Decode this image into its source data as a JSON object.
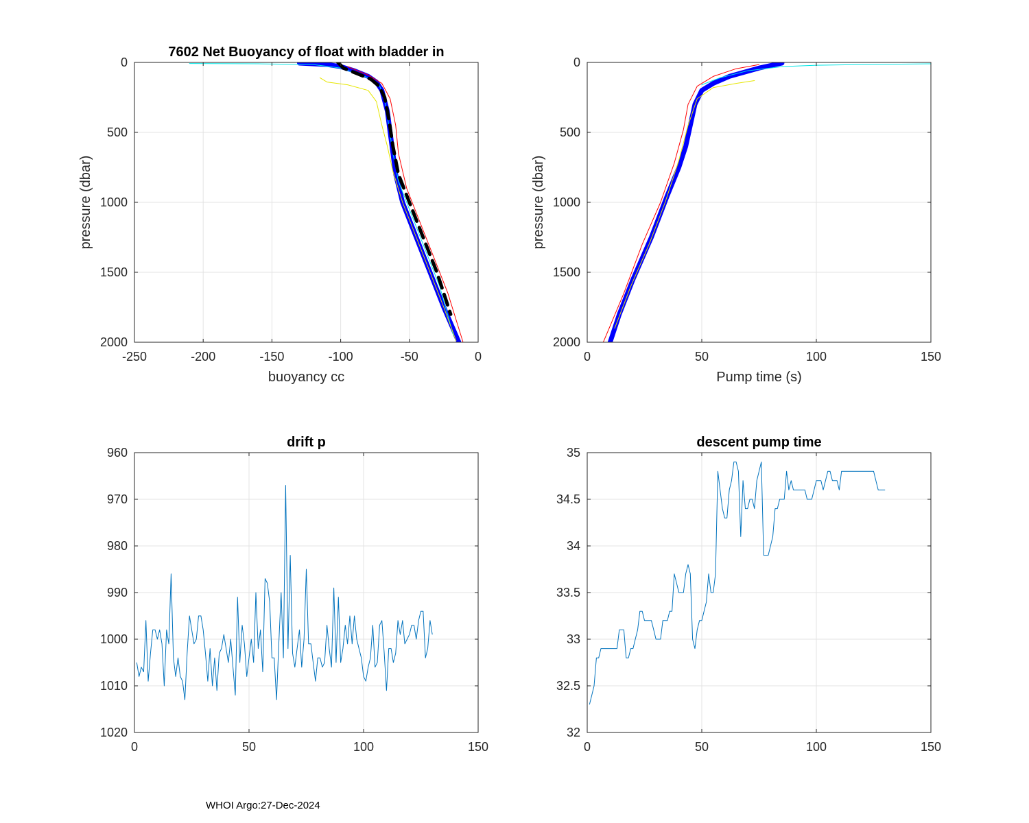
{
  "footer": "WHOI Argo:27-Dec-2024",
  "chart_data": [
    {
      "type": "line",
      "title": "7602 Net Buoyancy of float with bladder in",
      "xlabel": "buoyancy cc",
      "ylabel": "pressure (dbar)",
      "xlim": [
        -250,
        0
      ],
      "ylim": [
        0,
        2000
      ],
      "y_reversed": true,
      "xticks": [
        -250,
        -200,
        -150,
        -100,
        -50,
        0
      ],
      "yticks": [
        0,
        500,
        1000,
        1500,
        2000
      ],
      "grid": true,
      "series": [
        {
          "name": "profiles (blue)",
          "color": "#0000ff",
          "width": 7,
          "x": [
            -130,
            -110,
            -100,
            -90,
            -80,
            -74,
            -70,
            -66,
            -64,
            -62,
            -60,
            -55,
            -45,
            -35,
            -25,
            -14
          ],
          "y": [
            5,
            15,
            30,
            60,
            100,
            140,
            200,
            350,
            500,
            650,
            800,
            1000,
            1250,
            1500,
            1750,
            2000
          ]
        },
        {
          "name": "profile (cyan)",
          "color": "#00e6e6",
          "width": 1,
          "x": [
            -210,
            -160,
            -120,
            -100,
            -80,
            -72,
            -68,
            -65,
            -62,
            -58,
            -48,
            -38,
            -28,
            -18
          ],
          "y": [
            8,
            10,
            15,
            40,
            110,
            160,
            260,
            450,
            650,
            850,
            1100,
            1350,
            1600,
            1950
          ]
        },
        {
          "name": "profile (yellow)",
          "color": "#e6e600",
          "width": 1,
          "x": [
            -115,
            -110,
            -95,
            -80,
            -74,
            -70,
            -66,
            -62,
            -55,
            -45,
            -35,
            -25,
            -16
          ],
          "y": [
            110,
            140,
            160,
            200,
            280,
            450,
            600,
            780,
            1000,
            1250,
            1500,
            1750,
            1990
          ]
        },
        {
          "name": "profile (red)",
          "color": "#ff0000",
          "width": 1,
          "x": [
            -95,
            -80,
            -70,
            -64,
            -60,
            -58,
            -52,
            -42,
            -32,
            -22,
            -11
          ],
          "y": [
            30,
            90,
            150,
            260,
            450,
            650,
            900,
            1150,
            1400,
            1650,
            2000
          ]
        },
        {
          "name": "mean",
          "color": "#000000",
          "width": 5,
          "dash": true,
          "x": [
            -102,
            -98,
            -88,
            -78,
            -72,
            -68,
            -65,
            -62,
            -58,
            -50,
            -40,
            -30,
            -20
          ],
          "y": [
            0,
            40,
            80,
            120,
            170,
            250,
            400,
            600,
            800,
            1000,
            1250,
            1500,
            1800
          ]
        }
      ]
    },
    {
      "type": "line",
      "title": "",
      "xlabel": "Pump time (s)",
      "ylabel": "pressure (dbar)",
      "xlim": [
        0,
        150
      ],
      "ylim": [
        0,
        2000
      ],
      "y_reversed": true,
      "xticks": [
        0,
        50,
        100,
        150
      ],
      "yticks": [
        0,
        500,
        1000,
        1500,
        2000
      ],
      "grid": true,
      "series": [
        {
          "name": "profiles (blue)",
          "color": "#0000ff",
          "width": 7,
          "x": [
            85,
            75,
            62,
            55,
            50,
            47,
            45,
            43,
            40,
            35,
            28,
            20,
            14,
            10
          ],
          "y": [
            5,
            40,
            100,
            150,
            200,
            300,
            450,
            600,
            750,
            950,
            1250,
            1550,
            1800,
            2000
          ]
        },
        {
          "name": "profiles (cyan)",
          "color": "#00e6e6",
          "width": 1,
          "x": [
            150,
            120,
            100,
            85,
            70,
            58,
            50
          ],
          "y": [
            10,
            15,
            20,
            30,
            60,
            110,
            160
          ]
        },
        {
          "name": "profile (yellow)",
          "color": "#e6e600",
          "width": 1,
          "x": [
            73,
            65,
            55,
            48,
            44,
            40,
            34,
            27,
            19,
            12
          ],
          "y": [
            130,
            150,
            180,
            260,
            450,
            700,
            1000,
            1300,
            1600,
            1900
          ]
        },
        {
          "name": "profile (red)",
          "color": "#ff0000",
          "width": 1,
          "x": [
            75,
            65,
            55,
            48,
            44,
            42,
            38,
            32,
            24,
            16,
            7
          ],
          "y": [
            15,
            45,
            100,
            170,
            300,
            480,
            720,
            1000,
            1300,
            1650,
            2000
          ]
        }
      ]
    },
    {
      "type": "line",
      "title": "drift p",
      "xlabel": "",
      "ylabel": "",
      "xlim": [
        0,
        150
      ],
      "ylim": [
        960,
        1020
      ],
      "y_reversed": true,
      "xticks": [
        0,
        50,
        100,
        150
      ],
      "yticks": [
        960,
        970,
        980,
        990,
        1000,
        1010,
        1020
      ],
      "grid": true,
      "color": "#0072bd",
      "x": [
        1,
        2,
        3,
        4,
        5,
        6,
        7,
        8,
        9,
        10,
        11,
        12,
        13,
        14,
        15,
        16,
        17,
        18,
        19,
        20,
        21,
        22,
        23,
        24,
        25,
        26,
        27,
        28,
        29,
        30,
        31,
        32,
        33,
        34,
        35,
        36,
        37,
        38,
        39,
        40,
        41,
        42,
        43,
        44,
        45,
        46,
        47,
        48,
        49,
        50,
        51,
        52,
        53,
        54,
        55,
        56,
        57,
        58,
        59,
        60,
        61,
        62,
        63,
        64,
        65,
        66,
        67,
        68,
        69,
        70,
        71,
        72,
        73,
        74,
        75,
        76,
        77,
        78,
        79,
        80,
        81,
        82,
        83,
        84,
        85,
        86,
        87,
        88,
        89,
        90,
        91,
        92,
        93,
        94,
        95,
        96,
        97,
        98,
        99,
        100,
        101,
        102,
        103,
        104,
        105,
        106,
        107,
        108,
        109,
        110,
        111,
        112,
        113,
        114,
        115,
        116,
        117,
        118,
        119,
        120,
        121,
        122,
        123,
        124,
        125,
        126,
        127,
        128,
        129,
        130
      ],
      "values": [
        1005,
        1008,
        1006,
        1007,
        996,
        1009,
        1003,
        998,
        998,
        1000,
        998,
        1001,
        1010,
        998,
        1001,
        986,
        1004,
        1008,
        1004,
        1008,
        1009,
        1013,
        1003,
        995,
        998,
        1001,
        1000,
        995,
        995,
        998,
        1003,
        1009,
        1002,
        1010,
        1004,
        1011,
        1003,
        1002,
        999,
        1002,
        1005,
        1000,
        1006,
        1012,
        991,
        1005,
        997,
        1001,
        1008,
        1004,
        1000,
        1005,
        990,
        1002,
        998,
        1007,
        987,
        988,
        992,
        1004,
        1004,
        1013,
        1001,
        990,
        1004,
        967,
        1002,
        982,
        1003,
        1006,
        1002,
        998,
        1006,
        1000,
        985,
        1001,
        1001,
        1005,
        1009,
        1004,
        1004,
        1006,
        1005,
        997,
        1002,
        1006,
        989,
        1005,
        991,
        1005,
        1002,
        997,
        1001,
        995,
        1001,
        995,
        1000,
        1002,
        1004,
        1008,
        1009,
        1006,
        1004,
        997,
        1006,
        1005,
        997,
        996,
        1003,
        1011,
        1002,
        1002,
        1005,
        1003,
        996,
        999,
        996,
        1001,
        1000,
        999,
        997,
        997,
        1000,
        996,
        994,
        994,
        1004,
        1002,
        996,
        999
      ]
    },
    {
      "type": "line",
      "title": "descent pump time",
      "xlabel": "",
      "ylabel": "",
      "xlim": [
        0,
        150
      ],
      "ylim": [
        32,
        35
      ],
      "xticks": [
        0,
        50,
        100,
        150
      ],
      "yticks": [
        32,
        32.5,
        33,
        33.5,
        34,
        34.5,
        35
      ],
      "grid": true,
      "color": "#0072bd",
      "x": [
        1,
        2,
        3,
        4,
        5,
        6,
        7,
        8,
        9,
        10,
        11,
        12,
        13,
        14,
        15,
        16,
        17,
        18,
        19,
        20,
        21,
        22,
        23,
        24,
        25,
        26,
        27,
        28,
        29,
        30,
        31,
        32,
        33,
        34,
        35,
        36,
        37,
        38,
        39,
        40,
        41,
        42,
        43,
        44,
        45,
        46,
        47,
        48,
        49,
        50,
        51,
        52,
        53,
        54,
        55,
        56,
        57,
        58,
        59,
        60,
        61,
        62,
        63,
        64,
        65,
        66,
        67,
        68,
        69,
        70,
        71,
        72,
        73,
        74,
        75,
        76,
        77,
        78,
        79,
        80,
        81,
        82,
        83,
        84,
        85,
        86,
        87,
        88,
        89,
        90,
        91,
        92,
        93,
        94,
        95,
        96,
        97,
        98,
        99,
        100,
        101,
        102,
        103,
        104,
        105,
        106,
        107,
        108,
        109,
        110,
        111,
        112,
        113,
        114,
        115,
        116,
        117,
        118,
        119,
        120,
        121,
        122,
        123,
        124,
        125,
        126,
        127,
        128,
        129,
        130
      ],
      "values": [
        32.3,
        32.4,
        32.5,
        32.8,
        32.8,
        32.9,
        32.9,
        32.9,
        32.9,
        32.9,
        32.9,
        32.9,
        32.9,
        33.1,
        33.1,
        33.1,
        32.8,
        32.8,
        32.9,
        32.9,
        33.0,
        33.1,
        33.3,
        33.3,
        33.2,
        33.2,
        33.2,
        33.2,
        33.1,
        33.0,
        33.0,
        33.0,
        33.2,
        33.2,
        33.2,
        33.3,
        33.3,
        33.7,
        33.6,
        33.5,
        33.5,
        33.5,
        33.7,
        33.8,
        33.7,
        33.0,
        32.9,
        33.1,
        33.2,
        33.2,
        33.3,
        33.4,
        33.7,
        33.5,
        33.5,
        33.7,
        34.8,
        34.6,
        34.4,
        34.3,
        34.3,
        34.6,
        34.7,
        34.9,
        34.9,
        34.8,
        34.1,
        34.7,
        34.4,
        34.4,
        34.5,
        34.5,
        34.4,
        34.7,
        34.8,
        34.9,
        33.9,
        33.9,
        33.9,
        34.0,
        34.1,
        34.4,
        34.4,
        34.5,
        34.5,
        34.5,
        34.8,
        34.6,
        34.7,
        34.6,
        34.6,
        34.6,
        34.6,
        34.6,
        34.6,
        34.5,
        34.5,
        34.5,
        34.6,
        34.7,
        34.7,
        34.7,
        34.6,
        34.7,
        34.8,
        34.8,
        34.7,
        34.7,
        34.7,
        34.6,
        34.8,
        34.8,
        34.8,
        34.8,
        34.8,
        34.8,
        34.8,
        34.8,
        34.8,
        34.8,
        34.8,
        34.8,
        34.8,
        34.8,
        34.8,
        34.7,
        34.6,
        34.6,
        34.6,
        34.6
      ]
    }
  ]
}
